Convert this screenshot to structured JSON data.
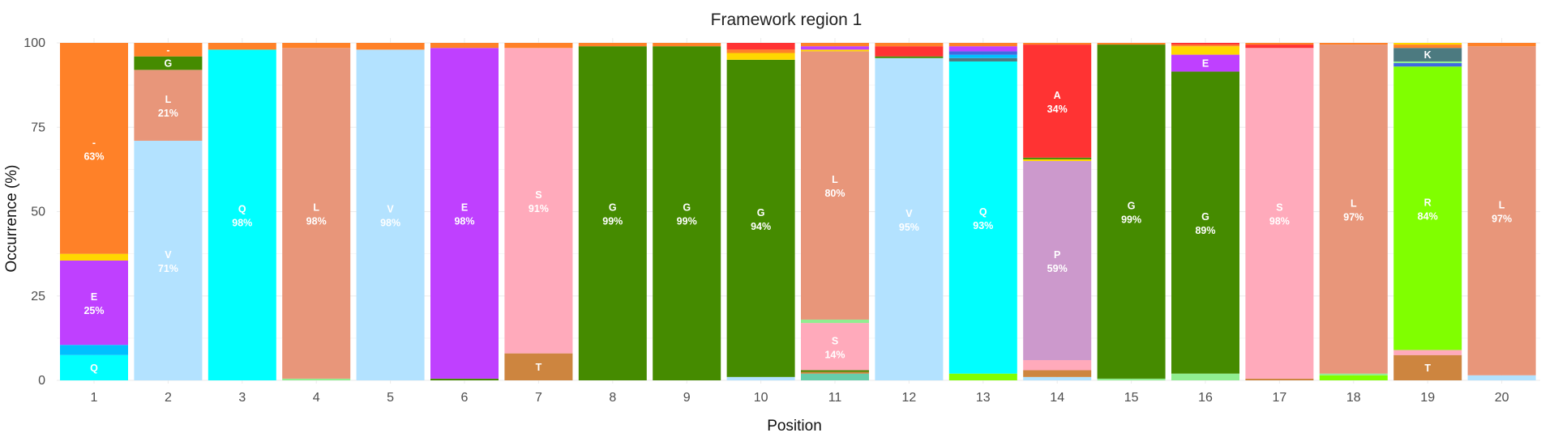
{
  "chart_data": {
    "type": "bar",
    "stacked": true,
    "title": "Framework region 1",
    "xlabel": "Position",
    "ylabel": "Occurrence (%)",
    "ylim": [
      0,
      100
    ],
    "yticks": [
      "0",
      "25",
      "50",
      "75",
      "100"
    ],
    "grid": true,
    "categories": [
      "1",
      "2",
      "3",
      "4",
      "5",
      "6",
      "7",
      "8",
      "9",
      "10",
      "11",
      "12",
      "13",
      "14",
      "15",
      "16",
      "17",
      "18",
      "19",
      "20"
    ],
    "residue_colors": {
      "-": "#FF8128",
      "Q": "#00FFFF",
      "V": "#B3E2FF",
      "L": "#E8967A",
      "E": "#BF40FF",
      "S": "#FFAABB",
      "G": "#458B00",
      "A": "#FF3333",
      "P": "#CC99CC",
      "R": "#80FF00",
      "T": "#CD853F",
      "K": "#4C7A80",
      "D": "#00BFFF",
      "Y": "#FFD700",
      "N": "#66CDAA",
      "F": "#9370DB",
      "M": "#4169E1",
      "I": "#90EE90"
    },
    "stacks": [
      {
        "position": "1",
        "segments": [
          {
            "residue": "Q",
            "value": 7.5,
            "label": "Q"
          },
          {
            "residue": "D",
            "value": 3,
            "label": ""
          },
          {
            "residue": "E",
            "value": 25,
            "label": "E",
            "pct": "25%"
          },
          {
            "residue": "Y",
            "value": 2,
            "label": ""
          },
          {
            "residue": "-",
            "value": 62.5,
            "label": "-",
            "pct": "63%"
          }
        ]
      },
      {
        "position": "2",
        "segments": [
          {
            "residue": "V",
            "value": 71,
            "label": "V",
            "pct": "71%"
          },
          {
            "residue": "L",
            "value": 21,
            "label": "L",
            "pct": "21%"
          },
          {
            "residue": "G",
            "value": 4,
            "label": "G"
          },
          {
            "residue": "-",
            "value": 4,
            "label": "-"
          }
        ]
      },
      {
        "position": "3",
        "segments": [
          {
            "residue": "Q",
            "value": 98,
            "label": "Q",
            "pct": "98%"
          },
          {
            "residue": "-",
            "value": 2,
            "label": ""
          }
        ]
      },
      {
        "position": "4",
        "segments": [
          {
            "residue": "I",
            "value": 0.5,
            "label": ""
          },
          {
            "residue": "L",
            "value": 98,
            "label": "L",
            "pct": "98%"
          },
          {
            "residue": "-",
            "value": 1.5,
            "label": ""
          }
        ]
      },
      {
        "position": "5",
        "segments": [
          {
            "residue": "V",
            "value": 98,
            "label": "V",
            "pct": "98%"
          },
          {
            "residue": "-",
            "value": 2,
            "label": ""
          }
        ]
      },
      {
        "position": "6",
        "segments": [
          {
            "residue": "G",
            "value": 0.5,
            "label": ""
          },
          {
            "residue": "E",
            "value": 98,
            "label": "E",
            "pct": "98%"
          },
          {
            "residue": "-",
            "value": 1.5,
            "label": ""
          }
        ]
      },
      {
        "position": "7",
        "segments": [
          {
            "residue": "T",
            "value": 8,
            "label": "T"
          },
          {
            "residue": "S",
            "value": 90.5,
            "label": "S",
            "pct": "91%"
          },
          {
            "residue": "-",
            "value": 1.5,
            "label": ""
          }
        ]
      },
      {
        "position": "8",
        "segments": [
          {
            "residue": "G",
            "value": 99,
            "label": "G",
            "pct": "99%"
          },
          {
            "residue": "-",
            "value": 1,
            "label": ""
          }
        ]
      },
      {
        "position": "9",
        "segments": [
          {
            "residue": "G",
            "value": 99,
            "label": "G",
            "pct": "99%"
          },
          {
            "residue": "-",
            "value": 1,
            "label": ""
          }
        ]
      },
      {
        "position": "10",
        "segments": [
          {
            "residue": "V",
            "value": 1,
            "label": ""
          },
          {
            "residue": "G",
            "value": 94,
            "label": "G",
            "pct": "94%"
          },
          {
            "residue": "Y",
            "value": 2,
            "label": ""
          },
          {
            "residue": "-",
            "value": 1,
            "label": ""
          },
          {
            "residue": "A",
            "value": 2,
            "label": ""
          }
        ]
      },
      {
        "position": "11",
        "segments": [
          {
            "residue": "N",
            "value": 2,
            "label": ""
          },
          {
            "residue": "T",
            "value": 0.5,
            "label": ""
          },
          {
            "residue": "G",
            "value": 0.5,
            "label": ""
          },
          {
            "residue": "S",
            "value": 14,
            "label": "S",
            "pct": "14%"
          },
          {
            "residue": "I",
            "value": 1,
            "label": ""
          },
          {
            "residue": "L",
            "value": 79.5,
            "label": "L",
            "pct": "80%"
          },
          {
            "residue": "Y",
            "value": 0.5,
            "label": ""
          },
          {
            "residue": "E",
            "value": 1,
            "label": ""
          },
          {
            "residue": "-",
            "value": 1,
            "label": ""
          }
        ]
      },
      {
        "position": "12",
        "segments": [
          {
            "residue": "V",
            "value": 95.5,
            "label": "V",
            "pct": "95%"
          },
          {
            "residue": "G",
            "value": 0.5,
            "label": ""
          },
          {
            "residue": "A",
            "value": 3,
            "label": ""
          },
          {
            "residue": "-",
            "value": 1,
            "label": ""
          }
        ]
      },
      {
        "position": "13",
        "segments": [
          {
            "residue": "R",
            "value": 2,
            "label": ""
          },
          {
            "residue": "Q",
            "value": 92.5,
            "label": "Q",
            "pct": "93%"
          },
          {
            "residue": "K",
            "value": 1,
            "label": ""
          },
          {
            "residue": "D",
            "value": 1,
            "label": ""
          },
          {
            "residue": "M",
            "value": 1,
            "label": ""
          },
          {
            "residue": "E",
            "value": 1.5,
            "label": ""
          },
          {
            "residue": "-",
            "value": 1,
            "label": ""
          }
        ]
      },
      {
        "position": "14",
        "segments": [
          {
            "residue": "V",
            "value": 1,
            "label": ""
          },
          {
            "residue": "T",
            "value": 2,
            "label": ""
          },
          {
            "residue": "S",
            "value": 3,
            "label": ""
          },
          {
            "residue": "P",
            "value": 59,
            "label": "P",
            "pct": "59%"
          },
          {
            "residue": "Y",
            "value": 0.5,
            "label": ""
          },
          {
            "residue": "G",
            "value": 0.5,
            "label": ""
          },
          {
            "residue": "A",
            "value": 33.5,
            "label": "A",
            "pct": "34%"
          },
          {
            "residue": "-",
            "value": 0.5,
            "label": ""
          }
        ]
      },
      {
        "position": "15",
        "segments": [
          {
            "residue": "I",
            "value": 0.5,
            "label": ""
          },
          {
            "residue": "G",
            "value": 99,
            "label": "G",
            "pct": "99%"
          },
          {
            "residue": "-",
            "value": 0.5,
            "label": ""
          }
        ]
      },
      {
        "position": "16",
        "segments": [
          {
            "residue": "I",
            "value": 2,
            "label": ""
          },
          {
            "residue": "G",
            "value": 89.5,
            "label": "G",
            "pct": "89%"
          },
          {
            "residue": "E",
            "value": 5,
            "label": "E"
          },
          {
            "residue": "Y",
            "value": 2.5,
            "label": ""
          },
          {
            "residue": "-",
            "value": 0.5,
            "label": ""
          },
          {
            "residue": "A",
            "value": 0.5,
            "label": ""
          }
        ]
      },
      {
        "position": "17",
        "segments": [
          {
            "residue": "T",
            "value": 0.5,
            "label": ""
          },
          {
            "residue": "S",
            "value": 98,
            "label": "S",
            "pct": "98%"
          },
          {
            "residue": "A",
            "value": 1,
            "label": ""
          },
          {
            "residue": "-",
            "value": 0.5,
            "label": ""
          }
        ]
      },
      {
        "position": "18",
        "segments": [
          {
            "residue": "R",
            "value": 1.5,
            "label": ""
          },
          {
            "residue": "I",
            "value": 0.5,
            "label": ""
          },
          {
            "residue": "L",
            "value": 97.5,
            "label": "L",
            "pct": "97%"
          },
          {
            "residue": "-",
            "value": 0.5,
            "label": ""
          }
        ]
      },
      {
        "position": "19",
        "segments": [
          {
            "residue": "T",
            "value": 7.5,
            "label": "T"
          },
          {
            "residue": "S",
            "value": 1.5,
            "label": ""
          },
          {
            "residue": "R",
            "value": 84,
            "label": "R",
            "pct": "84%"
          },
          {
            "residue": "M",
            "value": 1,
            "label": ""
          },
          {
            "residue": "I",
            "value": 0.5,
            "label": ""
          },
          {
            "residue": "K",
            "value": 4,
            "label": "K"
          },
          {
            "residue": "-",
            "value": 1,
            "label": ""
          },
          {
            "residue": "Y",
            "value": 0.5,
            "label": ""
          }
        ]
      },
      {
        "position": "20",
        "segments": [
          {
            "residue": "V",
            "value": 1.5,
            "label": ""
          },
          {
            "residue": "L",
            "value": 97.5,
            "label": "L",
            "pct": "97%"
          },
          {
            "residue": "-",
            "value": 1,
            "label": ""
          }
        ]
      }
    ]
  }
}
